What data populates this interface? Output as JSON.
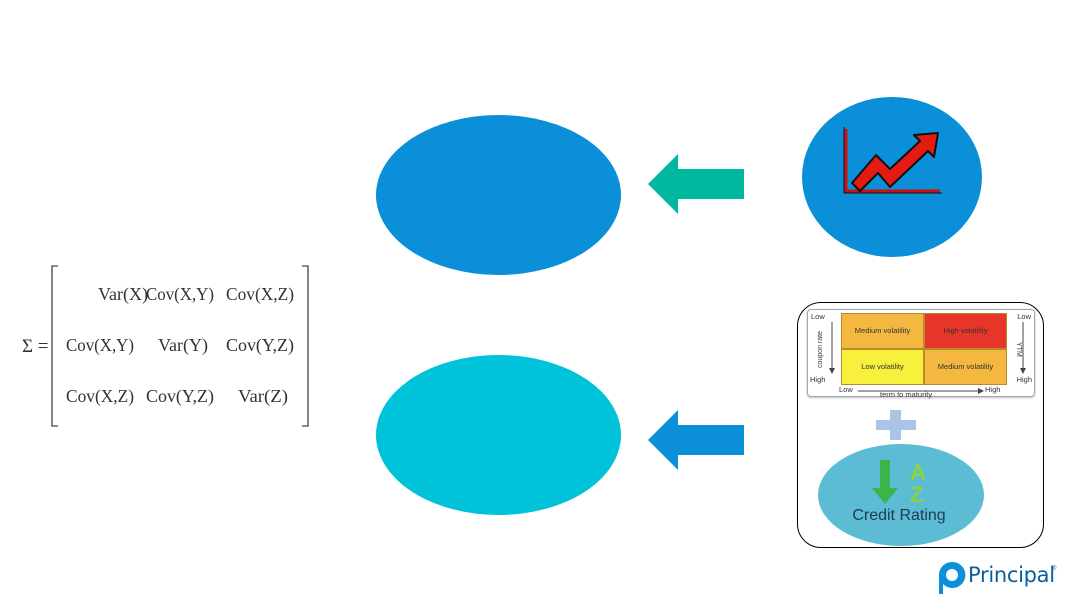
{
  "matrix": {
    "sigma": "Σ =",
    "rows": [
      [
        "Var(X)",
        "Cov(X,Y)",
        "Cov(X,Z)"
      ],
      [
        "Cov(X,Y)",
        "Var(Y)",
        "Cov(Y,Z)"
      ],
      [
        "Cov(X,Z)",
        "Cov(Y,Z)",
        "Var(Z)"
      ]
    ]
  },
  "volatility_grid": {
    "cells": {
      "top_left": "Medium volatility",
      "top_right": "High volatility",
      "bottom_left": "Low volatility",
      "bottom_right": "Medium volatility"
    },
    "left_axis": {
      "top": "Low",
      "bottom": "High",
      "label": "coupon rate"
    },
    "right_axis": {
      "top": "Low",
      "bottom": "High",
      "label": "YTM"
    },
    "bottom_axis": {
      "left": "Low",
      "right": "High",
      "label": "term to maturity"
    }
  },
  "credit": {
    "label": "Credit Rating",
    "letter_a": "A",
    "letter_z": "Z"
  },
  "logo": {
    "text": "Principal",
    "mark": "®"
  },
  "colors": {
    "ellipse_top": "#0a8fd8",
    "ellipse_bottom": "#00c2d9",
    "arrow_top": "#00b7a0",
    "arrow_bottom": "#0a8fd8",
    "high_volatility": "#e8352a",
    "medium_volatility": "#f4b840",
    "low_volatility": "#f7f03c"
  },
  "icons": [
    "trend-up-icon",
    "plus-icon",
    "sort-down-icon",
    "principal-logo-icon"
  ]
}
